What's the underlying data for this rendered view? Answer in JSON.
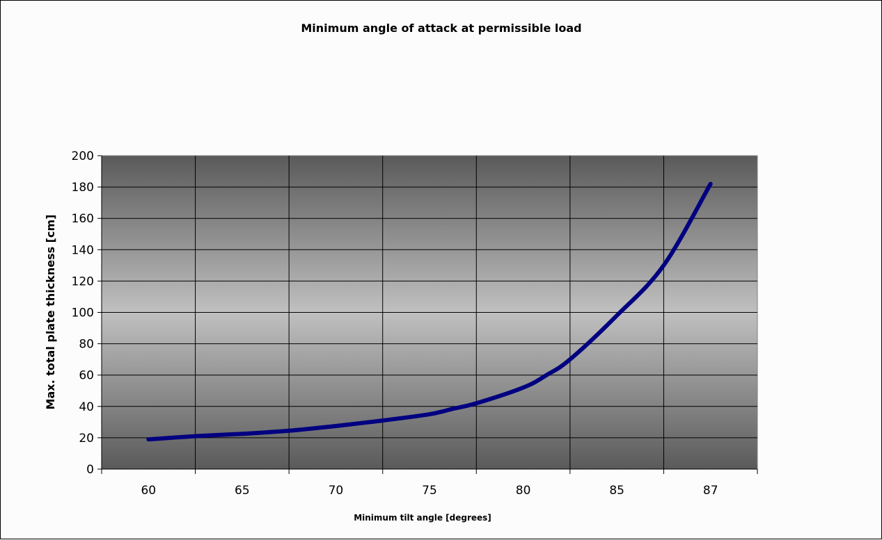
{
  "chart_data": {
    "type": "line",
    "title": "Minimum angle of attack at permissible load",
    "xlabel": "Minimum tilt angle [degrees]",
    "ylabel": "Max. total plate thickness [cm]",
    "categories": [
      "60",
      "65",
      "70",
      "75",
      "80",
      "85",
      "87"
    ],
    "ylim": [
      0,
      200
    ],
    "yticks": [
      0,
      20,
      40,
      60,
      80,
      100,
      120,
      140,
      160,
      180,
      200
    ],
    "series": [
      {
        "color": "#000080",
        "points": [
          {
            "x": 0.0,
            "y": 19
          },
          {
            "x": 0.5,
            "y": 21
          },
          {
            "x": 1.0,
            "y": 22.5
          },
          {
            "x": 1.5,
            "y": 24.5
          },
          {
            "x": 2.0,
            "y": 27.5
          },
          {
            "x": 2.5,
            "y": 31
          },
          {
            "x": 3.0,
            "y": 35
          },
          {
            "x": 3.25,
            "y": 38.5
          },
          {
            "x": 3.5,
            "y": 42
          },
          {
            "x": 4.0,
            "y": 52
          },
          {
            "x": 4.25,
            "y": 60
          },
          {
            "x": 4.5,
            "y": 70
          },
          {
            "x": 5.0,
            "y": 98
          },
          {
            "x": 5.5,
            "y": 130
          },
          {
            "x": 6.0,
            "y": 182
          }
        ]
      }
    ],
    "grid": true,
    "legend": "none",
    "plot_background": "dark gray vertical gradient, lighter at middle"
  }
}
